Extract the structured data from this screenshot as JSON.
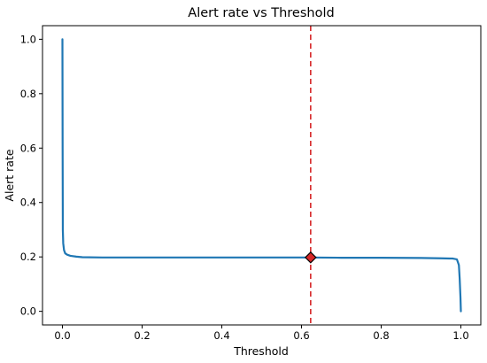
{
  "chart_data": {
    "type": "line",
    "title": "Alert rate vs Threshold",
    "xlabel": "Threshold",
    "ylabel": "Alert rate",
    "xlim": [
      -0.05,
      1.05
    ],
    "ylim": [
      -0.05,
      1.05
    ],
    "xticks": [
      0.0,
      0.2,
      0.4,
      0.6,
      0.8,
      1.0
    ],
    "xtick_labels": [
      "0.0",
      "0.2",
      "0.4",
      "0.6",
      "0.8",
      "1.0"
    ],
    "yticks": [
      0.0,
      0.2,
      0.4,
      0.6,
      0.8,
      1.0
    ],
    "ytick_labels": [
      "0.0",
      "0.2",
      "0.4",
      "0.6",
      "0.8",
      "1.0"
    ],
    "grid": false,
    "legend": "none",
    "series": [
      {
        "color": "#1f77b4",
        "x": [
          0.0,
          0.0005,
          0.001,
          0.002,
          0.004,
          0.007,
          0.012,
          0.02,
          0.035,
          0.05,
          0.1,
          0.2,
          0.3,
          0.4,
          0.5,
          0.6,
          0.623,
          0.7,
          0.8,
          0.9,
          0.95,
          0.98,
          0.99,
          0.995,
          0.997,
          0.999,
          1.0
        ],
        "y": [
          1.0,
          0.6,
          0.3,
          0.25,
          0.225,
          0.213,
          0.208,
          0.204,
          0.201,
          0.199,
          0.198,
          0.198,
          0.198,
          0.198,
          0.198,
          0.198,
          0.198,
          0.197,
          0.197,
          0.196,
          0.195,
          0.194,
          0.191,
          0.17,
          0.12,
          0.05,
          0.0
        ]
      }
    ],
    "threshold_line": {
      "x": 0.623,
      "color": "#d62728",
      "style": "dashed"
    },
    "marker": {
      "x": 0.623,
      "y": 0.198,
      "shape": "diamond",
      "fill": "#d62728",
      "edge": "#000000"
    }
  }
}
